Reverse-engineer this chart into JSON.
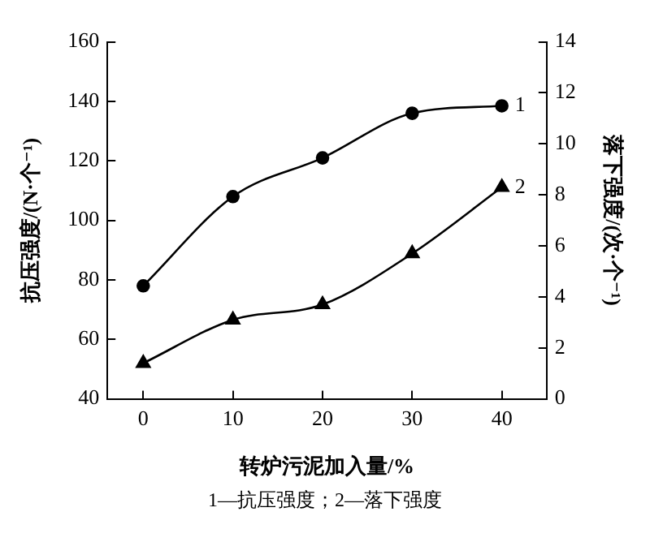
{
  "chart_data": {
    "type": "line",
    "xlabel": "转炉污泥加入量/%",
    "ylabel": "抗压强度/(N·个⁻¹)",
    "y2label": "落下强度/(次·个⁻¹)",
    "x": [
      0,
      10,
      20,
      30,
      40
    ],
    "series": [
      {
        "name": "1",
        "color": "#000000",
        "marker": "circle",
        "values": [
          78,
          108,
          121,
          136,
          138.5
        ]
      },
      {
        "name": "2",
        "color": "#000000",
        "marker": "triangle",
        "axis": "y2",
        "values": [
          1.4,
          3.1,
          3.7,
          5.7,
          8.3
        ]
      }
    ],
    "xlim": [
      -4,
      45
    ],
    "xticks": [
      0,
      10,
      20,
      30,
      40
    ],
    "ylim": [
      40,
      160
    ],
    "yticks": [
      40,
      60,
      80,
      100,
      120,
      140,
      160
    ],
    "y2lim": [
      0,
      14
    ],
    "y2ticks": [
      0,
      2,
      4,
      6,
      8,
      10,
      12,
      14
    ],
    "grid": false,
    "legend": false,
    "annotations": [
      "1—抗压强度；2—落下强度"
    ]
  }
}
